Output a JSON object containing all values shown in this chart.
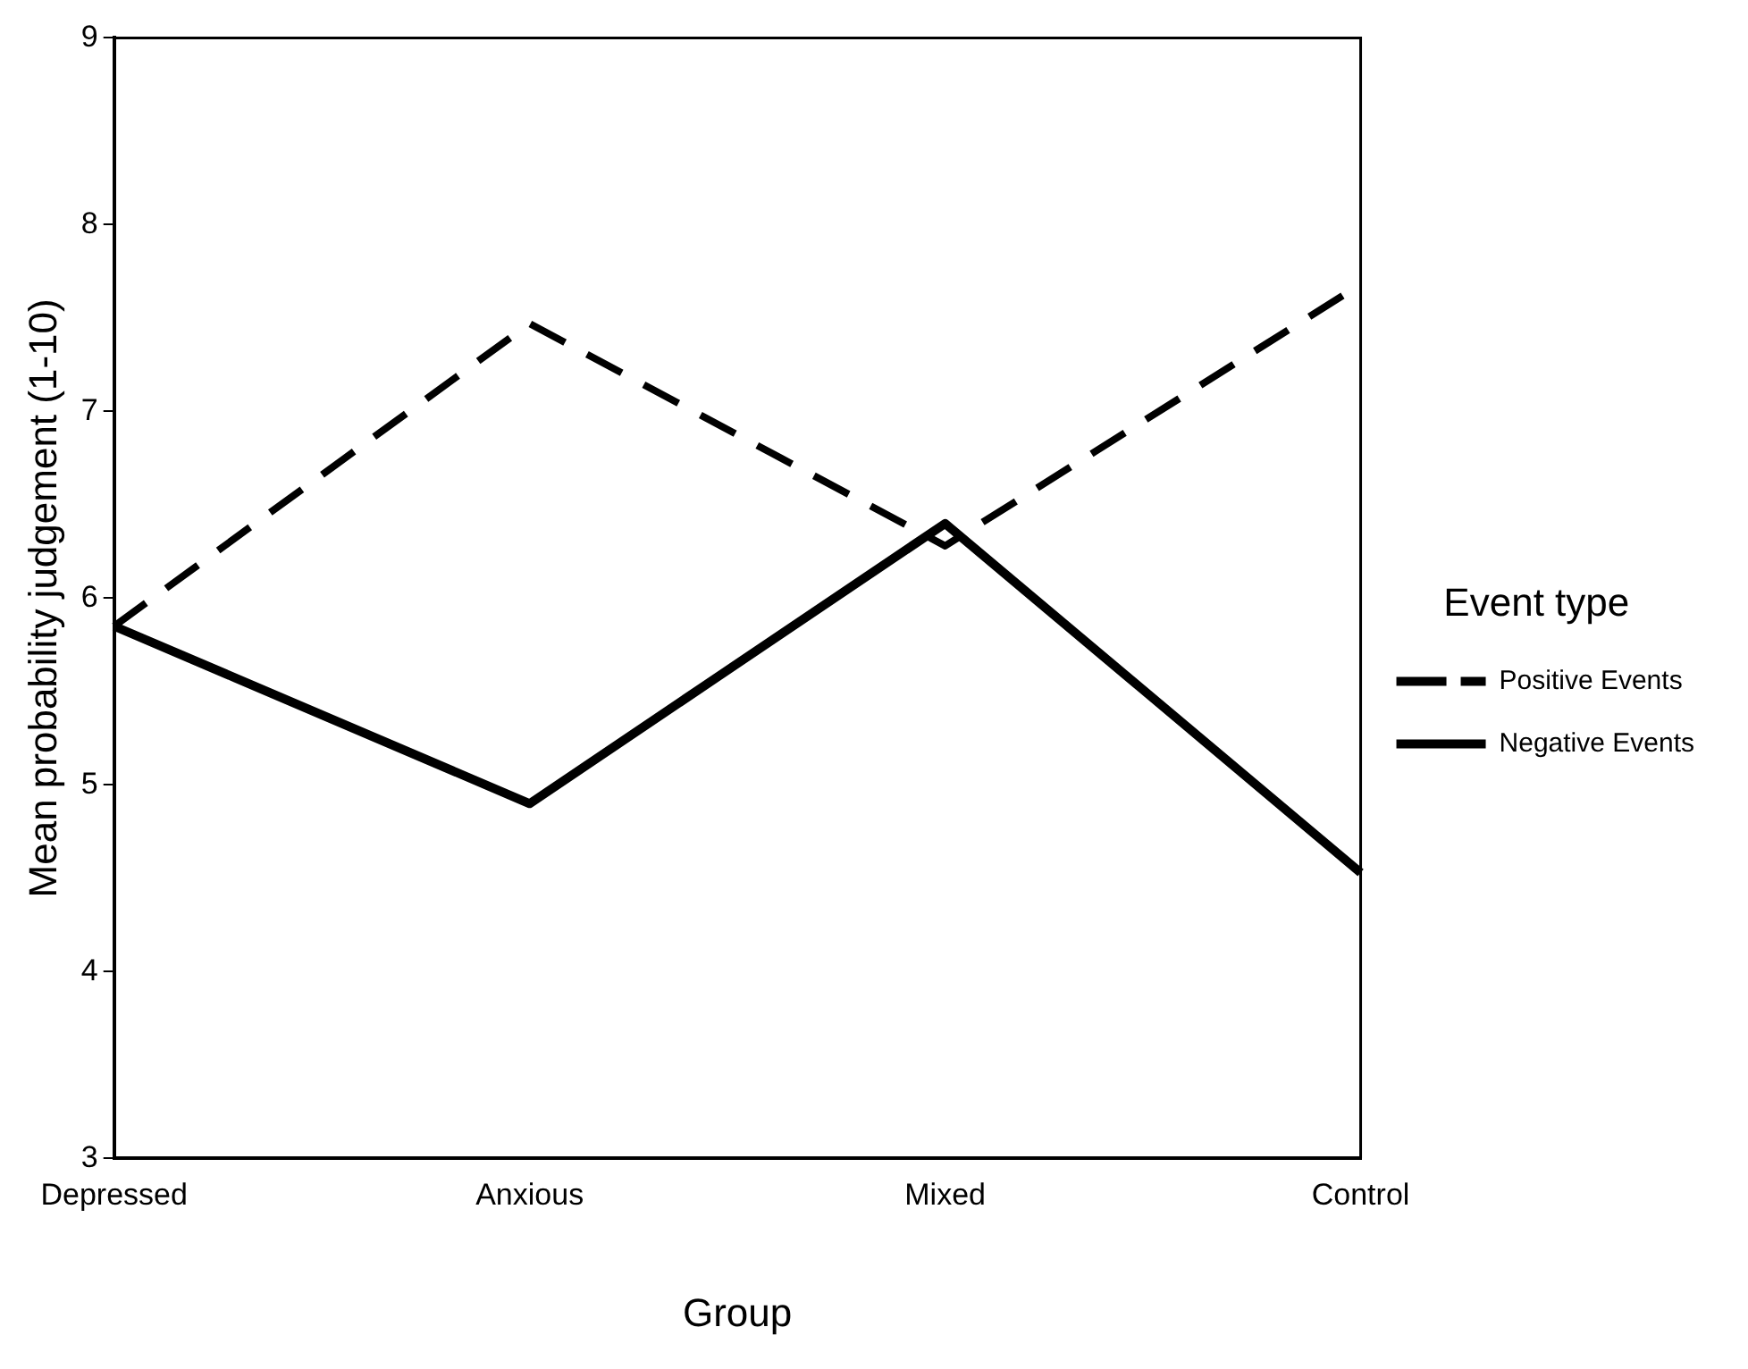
{
  "chart_data": {
    "type": "line",
    "xlabel": "Group",
    "ylabel": "Mean probability judgement (1-10)",
    "legend_title": "Event type",
    "categories": [
      "Depressed",
      "Anxious",
      "Mixed",
      "Control"
    ],
    "series": [
      {
        "name": "Positive Events",
        "color": "#000000",
        "line_style": "dashed",
        "values": [
          5.85,
          7.47,
          6.28,
          7.68
        ]
      },
      {
        "name": "Negative Events",
        "color": "#000000",
        "line_style": "solid",
        "values": [
          5.85,
          4.9,
          6.4,
          4.53
        ]
      }
    ],
    "ylim": [
      3,
      9
    ],
    "yticks": [
      3,
      4,
      5,
      6,
      7,
      8,
      9
    ],
    "grid": false,
    "legend": "right",
    "marker": "none"
  }
}
